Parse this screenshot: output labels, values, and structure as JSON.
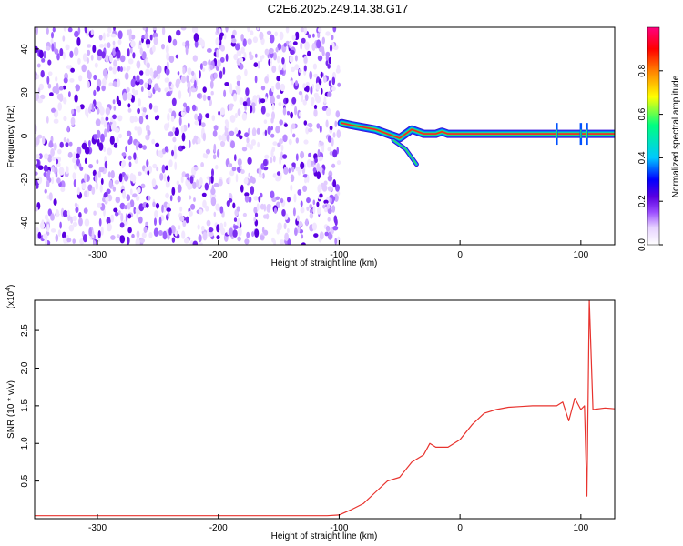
{
  "title": "C2E6.2025.249.14.38.G17",
  "chart_data": [
    {
      "type": "heatmap",
      "name": "spectrogram",
      "xlabel": "Height of straight line (km)",
      "ylabel": "Frequency (Hz)",
      "xlim": [
        -352,
        128
      ],
      "ylim": [
        -50,
        50
      ],
      "xticks": [
        -300,
        -200,
        -100,
        0,
        100
      ],
      "xtick_labels": [
        "-300",
        "-200",
        "-100",
        "0",
        "100"
      ],
      "yticks": [
        -40,
        -20,
        0,
        20,
        40
      ],
      "ytick_labels": [
        "-40",
        "-20",
        "0",
        "20",
        "40"
      ],
      "colorbar": {
        "label": "Normalized spectral amplitude",
        "range": [
          0,
          1
        ],
        "ticks": [
          0.0,
          0.2,
          0.4,
          0.6,
          0.8
        ],
        "tick_labels": [
          "0.0",
          "0.2",
          "0.4",
          "0.6",
          "0.8"
        ],
        "colors": [
          "#ffffff",
          "#e6d2ff",
          "#9b4dff",
          "#5a00e0",
          "#0000ff",
          "#00c8ff",
          "#00ff80",
          "#ffff00",
          "#ff8000",
          "#ff0000",
          "#ff0080"
        ]
      },
      "noise_region": {
        "x_range": [
          -352,
          -100
        ],
        "freq_range": [
          -50,
          50
        ]
      },
      "signal_track": [
        {
          "x": -98,
          "freq": 6
        },
        {
          "x": -90,
          "freq": 5
        },
        {
          "x": -80,
          "freq": 4
        },
        {
          "x": -70,
          "freq": 3
        },
        {
          "x": -60,
          "freq": 1
        },
        {
          "x": -50,
          "freq": -1
        },
        {
          "x": -45,
          "freq": 1
        },
        {
          "x": -40,
          "freq": 3
        },
        {
          "x": -30,
          "freq": 1
        },
        {
          "x": -20,
          "freq": 1
        },
        {
          "x": -15,
          "freq": 2
        },
        {
          "x": -10,
          "freq": 1
        },
        {
          "x": 0,
          "freq": 1
        },
        {
          "x": 50,
          "freq": 1
        },
        {
          "x": 100,
          "freq": 1
        },
        {
          "x": 128,
          "freq": 1
        }
      ],
      "track_branch": [
        {
          "x": -55,
          "freq": -2
        },
        {
          "x": -45,
          "freq": -6
        },
        {
          "x": -36,
          "freq": -13
        }
      ],
      "track_spikes_x": [
        80,
        100,
        105
      ]
    },
    {
      "type": "line",
      "name": "snr",
      "xlabel": "Height of straight line (km)",
      "ylabel": "SNR (10 * v/v)",
      "y_multiplier": "(x10",
      "y_multiplier_exp": "4",
      "y_multiplier_close": ")",
      "xlim": [
        -352,
        128
      ],
      "ylim": [
        0,
        2.9
      ],
      "xticks": [
        -300,
        -200,
        -100,
        0,
        100
      ],
      "xtick_labels": [
        "-300",
        "-200",
        "-100",
        "0",
        "100"
      ],
      "yticks": [
        0.5,
        1.0,
        1.5,
        2.0,
        2.5
      ],
      "ytick_labels": [
        "0.5",
        "1.0",
        "1.5",
        "2.0",
        "2.5"
      ],
      "color": "#e8332e",
      "series": [
        {
          "x": [
            -352,
            -300,
            -250,
            -200,
            -150,
            -110,
            -100,
            -90,
            -80,
            -70,
            -60,
            -50,
            -40,
            -30,
            -25,
            -20,
            -10,
            0,
            10,
            20,
            30,
            40,
            50,
            60,
            70,
            80,
            85,
            90,
            95,
            100,
            103,
            105,
            107,
            110,
            120,
            128
          ],
          "y": [
            0.04,
            0.04,
            0.04,
            0.04,
            0.04,
            0.04,
            0.05,
            0.12,
            0.2,
            0.35,
            0.5,
            0.55,
            0.75,
            0.85,
            1.0,
            0.95,
            0.95,
            1.05,
            1.25,
            1.4,
            1.45,
            1.48,
            1.49,
            1.5,
            1.5,
            1.5,
            1.55,
            1.3,
            1.6,
            1.45,
            1.5,
            0.3,
            2.9,
            1.45,
            1.47,
            1.46
          ]
        }
      ]
    }
  ]
}
